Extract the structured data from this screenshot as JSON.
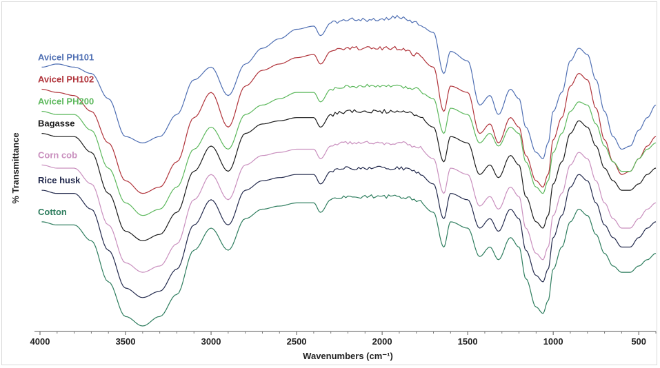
{
  "chart_data": {
    "type": "line",
    "title": "",
    "xlabel": "Wavenumbers (cm⁻¹)",
    "ylabel": "% Transmittance",
    "xlim": [
      4000,
      400
    ],
    "x_reversed": true,
    "grid": false,
    "legend": "inline labels at top-left of each trace",
    "xticks": [
      4000,
      3500,
      3000,
      2500,
      2000,
      1500,
      1000,
      500
    ],
    "xtick_labels": [
      "4000",
      "3500",
      "3000",
      "2500",
      "2000",
      "1500",
      "1000",
      "500"
    ],
    "yticks_visible": false,
    "series": [
      {
        "name": "Avicel PH101",
        "color": "#4f6fb3",
        "x": [
          3990,
          3900,
          3800,
          3700,
          3600,
          3500,
          3400,
          3300,
          3200,
          3100,
          3000,
          2900,
          2800,
          2700,
          2600,
          2500,
          2400,
          2360,
          2300,
          2200,
          2100,
          2000,
          1900,
          1800,
          1700,
          1640,
          1600,
          1500,
          1430,
          1370,
          1320,
          1250,
          1200,
          1160,
          1100,
          1060,
          1030,
          1000,
          950,
          900,
          850,
          800,
          750,
          700,
          650,
          600,
          550,
          500,
          450,
          400
        ],
        "y": [
          82,
          83,
          82,
          80,
          72,
          60,
          58,
          60,
          67,
          78,
          82,
          73,
          83,
          88,
          91,
          94,
          95,
          92,
          96,
          97,
          97,
          97,
          98,
          96,
          93,
          80,
          87,
          84,
          70,
          73,
          67,
          75,
          72,
          63,
          55,
          53,
          58,
          68,
          74,
          84,
          88,
          86,
          78,
          68,
          60,
          56,
          57,
          62,
          66,
          70
        ]
      },
      {
        "name": "Avicel PH102",
        "color": "#b0333a",
        "x": [
          3990,
          3900,
          3800,
          3700,
          3600,
          3500,
          3400,
          3300,
          3200,
          3100,
          3000,
          2900,
          2800,
          2700,
          2600,
          2500,
          2400,
          2360,
          2300,
          2200,
          2100,
          2000,
          1900,
          1800,
          1700,
          1640,
          1600,
          1500,
          1430,
          1370,
          1320,
          1250,
          1200,
          1160,
          1100,
          1060,
          1030,
          1000,
          950,
          900,
          850,
          800,
          750,
          700,
          650,
          600,
          550,
          500,
          450,
          400
        ],
        "y": [
          75,
          74,
          73,
          68,
          58,
          46,
          42,
          44,
          52,
          66,
          74,
          63,
          76,
          81,
          83,
          85,
          86,
          83,
          87,
          88,
          88,
          88,
          88,
          86,
          82,
          68,
          76,
          74,
          61,
          64,
          58,
          66,
          63,
          54,
          46,
          44,
          48,
          59,
          66,
          76,
          80,
          78,
          69,
          59,
          52,
          48,
          49,
          53,
          57,
          60
        ]
      },
      {
        "name": "Avicel PH200",
        "color": "#5cb85c",
        "x": [
          3990,
          3900,
          3800,
          3700,
          3600,
          3500,
          3400,
          3300,
          3200,
          3100,
          3000,
          2900,
          2800,
          2700,
          2600,
          2500,
          2400,
          2360,
          2300,
          2200,
          2100,
          2000,
          1900,
          1800,
          1700,
          1640,
          1600,
          1500,
          1430,
          1370,
          1320,
          1250,
          1200,
          1160,
          1100,
          1060,
          1030,
          1000,
          950,
          900,
          850,
          800,
          750,
          700,
          650,
          600,
          550,
          500,
          450,
          400
        ],
        "y": [
          68,
          67,
          67,
          62,
          50,
          39,
          35,
          37,
          44,
          56,
          63,
          56,
          67,
          70,
          72,
          74,
          74,
          71,
          75,
          76,
          76,
          76,
          76,
          75,
          72,
          61,
          69,
          67,
          58,
          61,
          57,
          63,
          61,
          52,
          44,
          42,
          46,
          55,
          61,
          68,
          71,
          70,
          64,
          57,
          52,
          49,
          49,
          53,
          56,
          58
        ]
      },
      {
        "name": "Bagasse",
        "color": "#1a1a1a",
        "x": [
          3990,
          3900,
          3800,
          3700,
          3600,
          3500,
          3400,
          3300,
          3200,
          3100,
          3000,
          2900,
          2800,
          2700,
          2600,
          2500,
          2400,
          2360,
          2300,
          2200,
          2100,
          2000,
          1900,
          1800,
          1700,
          1640,
          1600,
          1500,
          1430,
          1370,
          1320,
          1250,
          1200,
          1160,
          1100,
          1060,
          1030,
          1000,
          950,
          900,
          850,
          800,
          750,
          700,
          650,
          600,
          550,
          500,
          450,
          400
        ],
        "y": [
          61,
          60,
          60,
          55,
          42,
          30,
          27,
          29,
          36,
          49,
          57,
          49,
          61,
          64,
          65,
          66,
          66,
          63,
          67,
          68,
          68,
          68,
          68,
          67,
          63,
          52,
          60,
          58,
          48,
          51,
          47,
          54,
          51,
          41,
          33,
          31,
          35,
          45,
          52,
          61,
          65,
          63,
          57,
          50,
          46,
          43,
          43,
          45,
          48,
          50
        ]
      },
      {
        "name": "Corn cob",
        "color": "#c98fbe",
        "x": [
          3990,
          3900,
          3800,
          3700,
          3600,
          3500,
          3400,
          3300,
          3200,
          3100,
          3000,
          2900,
          2800,
          2700,
          2600,
          2500,
          2400,
          2360,
          2300,
          2200,
          2100,
          2000,
          1900,
          1800,
          1700,
          1640,
          1600,
          1500,
          1430,
          1370,
          1320,
          1250,
          1200,
          1160,
          1100,
          1060,
          1030,
          1000,
          950,
          900,
          850,
          800,
          750,
          700,
          650,
          600,
          550,
          500,
          450,
          400
        ],
        "y": [
          51,
          50,
          50,
          45,
          32,
          20,
          17,
          19,
          26,
          40,
          48,
          40,
          51,
          54,
          55,
          56,
          56,
          53,
          57,
          58,
          58,
          58,
          58,
          57,
          53,
          42,
          50,
          48,
          38,
          41,
          37,
          44,
          41,
          31,
          23,
          21,
          25,
          35,
          42,
          51,
          55,
          53,
          46,
          39,
          34,
          31,
          31,
          34,
          37,
          39
        ]
      },
      {
        "name": "Rice husk",
        "color": "#232a4d",
        "x": [
          3990,
          3900,
          3800,
          3700,
          3600,
          3500,
          3400,
          3300,
          3200,
          3100,
          3000,
          2900,
          2800,
          2700,
          2600,
          2500,
          2400,
          2360,
          2300,
          2200,
          2100,
          2000,
          1900,
          1800,
          1700,
          1640,
          1600,
          1500,
          1430,
          1370,
          1320,
          1250,
          1200,
          1160,
          1100,
          1060,
          1030,
          1000,
          950,
          900,
          850,
          800,
          750,
          700,
          650,
          600,
          550,
          500,
          450,
          400
        ],
        "y": [
          43,
          42,
          42,
          37,
          24,
          12,
          9,
          11,
          18,
          32,
          40,
          32,
          43,
          46,
          47,
          48,
          48,
          45,
          49,
          50,
          50,
          50,
          50,
          49,
          45,
          34,
          42,
          40,
          31,
          34,
          30,
          37,
          34,
          24,
          16,
          14,
          18,
          28,
          35,
          44,
          48,
          46,
          39,
          32,
          28,
          25,
          25,
          28,
          31,
          33
        ]
      },
      {
        "name": "Cotton",
        "color": "#2e7d5e",
        "x": [
          3990,
          3900,
          3800,
          3700,
          3600,
          3500,
          3400,
          3300,
          3200,
          3100,
          3000,
          2900,
          2800,
          2700,
          2600,
          2500,
          2400,
          2360,
          2300,
          2200,
          2100,
          2000,
          1900,
          1800,
          1700,
          1640,
          1600,
          1500,
          1430,
          1370,
          1320,
          1250,
          1200,
          1160,
          1100,
          1060,
          1030,
          1000,
          950,
          900,
          850,
          800,
          750,
          700,
          650,
          600,
          550,
          500,
          450,
          400
        ],
        "y": [
          33,
          32,
          32,
          27,
          14,
          3,
          0,
          3,
          10,
          24,
          31,
          24,
          34,
          37,
          38,
          39,
          39,
          36,
          40,
          41,
          41,
          41,
          41,
          40,
          36,
          25,
          33,
          31,
          22,
          25,
          21,
          28,
          25,
          15,
          6,
          4,
          8,
          18,
          25,
          33,
          37,
          35,
          29,
          23,
          19,
          17,
          17,
          19,
          21,
          23
        ]
      }
    ]
  }
}
